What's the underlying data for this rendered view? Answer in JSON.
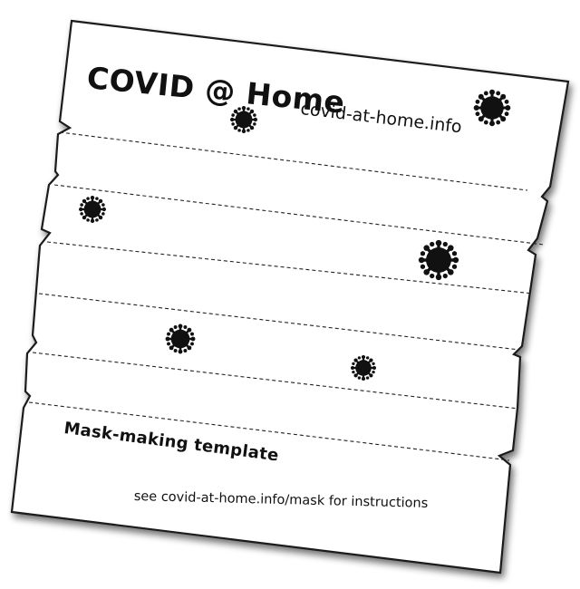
{
  "template": {
    "title": "COVID @ Home",
    "website": "covid-at-home.info",
    "subtitle": "Mask-making template",
    "instructions": "see covid-at-home.info/mask for instructions"
  },
  "icons": [
    "virus-icon",
    "virus-icon",
    "virus-icon",
    "virus-icon",
    "virus-icon",
    "virus-icon"
  ],
  "colors": {
    "paper": "#ffffff",
    "ink": "#111111",
    "outline": "#1a1a1a"
  }
}
